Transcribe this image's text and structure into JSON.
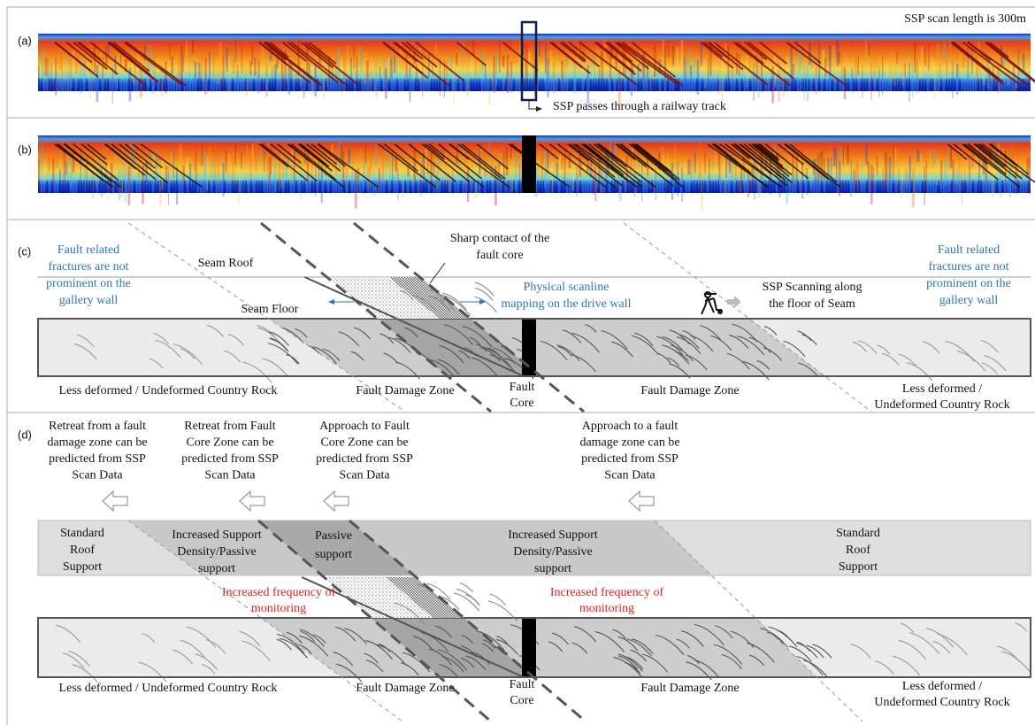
{
  "panels": {
    "a": {
      "label": "(a)",
      "scan_length_note": "SSP scan length is 300m",
      "railway_note": "SSP passes through a railway track"
    },
    "b": {
      "label": "(b)"
    },
    "c": {
      "label": "(c)",
      "left_note": [
        "Fault related",
        "fractures are not",
        "prominent on the",
        "gallery wall"
      ],
      "right_note": [
        "Fault related",
        "fractures are not",
        "prominent on the",
        "gallery wall"
      ],
      "seam_roof": "Seam Roof",
      "seam_floor": "Seam Floor",
      "sharp_contact": [
        "Sharp contact of the",
        "fault core"
      ],
      "physical_mapping": [
        "Physical scanline",
        "mapping on the drive wall"
      ],
      "ssp_scanning": [
        "SSP Scanning along",
        "the floor of Seam"
      ],
      "zones": {
        "left": "Less deformed / Undeformed Country Rock",
        "damage_left": "Fault Damage Zone",
        "core": [
          "Fault",
          "Core"
        ],
        "damage_right": "Fault Damage Zone",
        "right": [
          "Less deformed /",
          "Undeformed Country Rock"
        ]
      }
    },
    "d": {
      "label": "(d)",
      "predictions": [
        [
          "Retreat from a fault",
          "damage zone can be",
          "predicted from SSP",
          "Scan Data"
        ],
        [
          "Retreat from Fault",
          "Core Zone can be",
          "predicted from SSP",
          "Scan Data"
        ],
        [
          "Approach to Fault",
          "Core Zone can be",
          "predicted from SSP",
          "Scan Data"
        ],
        [
          "Approach to a fault",
          "damage zone can be",
          "predicted from SSP",
          "Scan Data"
        ]
      ],
      "supports": [
        [
          "Standard",
          "Roof",
          "Support"
        ],
        [
          "Increased Support",
          "Density/Passive",
          "support"
        ],
        [
          "Passive",
          "support"
        ],
        [
          "Increased Support",
          "Density/Passive",
          "support"
        ],
        [
          "Standard",
          "Roof",
          "Support"
        ]
      ],
      "monitoring": [
        [
          "Increased frequency of",
          "monitoring"
        ],
        [
          "Increased frequency of",
          "monitoring"
        ]
      ],
      "zones": {
        "left": "Less deformed / Undeformed Country Rock",
        "damage_left": "Fault Damage Zone",
        "core": [
          "Fault",
          "Core"
        ],
        "damage_right": "Fault Damage Zone",
        "right": [
          "Less deformed /",
          "Undeformed Country Rock"
        ]
      }
    }
  }
}
